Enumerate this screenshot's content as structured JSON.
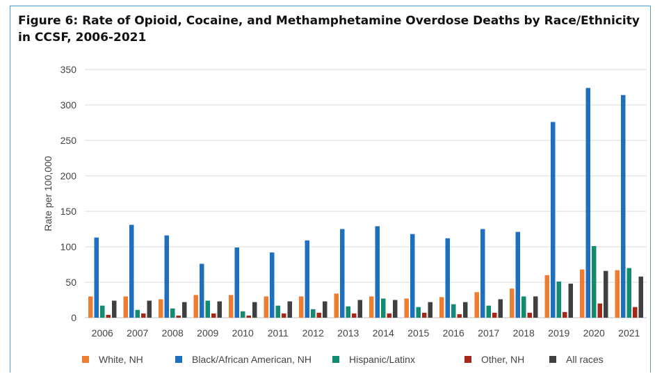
{
  "chart_data": {
    "type": "bar",
    "title": "Figure 6: Rate of Opioid, Cocaine, and Methamphetamine Overdose Deaths by Race/Ethnicity in CCSF, 2006-2021",
    "xlabel": "",
    "ylabel": "Rate per 100,000",
    "ylim": [
      0,
      350
    ],
    "yticks": [
      0,
      50,
      100,
      150,
      200,
      250,
      300,
      350
    ],
    "grid": true,
    "legend_position": "bottom",
    "categories": [
      "2006",
      "2007",
      "2008",
      "2009",
      "2010",
      "2011",
      "2012",
      "2013",
      "2014",
      "2015",
      "2016",
      "2017",
      "2018",
      "2019",
      "2020",
      "2021"
    ],
    "series": [
      {
        "name": "White, NH",
        "color": "#ed7d31",
        "values": [
          30,
          30,
          26,
          32,
          32,
          30,
          30,
          34,
          30,
          27,
          29,
          36,
          41,
          60,
          68,
          67
        ]
      },
      {
        "name": "Black/African American, NH",
        "color": "#1f6fc1",
        "values": [
          113,
          131,
          116,
          76,
          99,
          92,
          109,
          125,
          129,
          118,
          112,
          125,
          121,
          276,
          324,
          314
        ]
      },
      {
        "name": "Hispanic/Latinx",
        "color": "#138a72",
        "values": [
          17,
          11,
          13,
          24,
          9,
          17,
          12,
          16,
          27,
          15,
          19,
          17,
          30,
          51,
          101,
          70
        ]
      },
      {
        "name": "Other, NH",
        "color": "#a5281b",
        "values": [
          4,
          6,
          3,
          6,
          3,
          6,
          7,
          6,
          6,
          7,
          5,
          7,
          7,
          8,
          20,
          15
        ]
      },
      {
        "name": "All races",
        "color": "#404040",
        "values": [
          24,
          24,
          22,
          23,
          22,
          23,
          23,
          25,
          25,
          22,
          22,
          26,
          30,
          48,
          66,
          58
        ]
      }
    ]
  }
}
